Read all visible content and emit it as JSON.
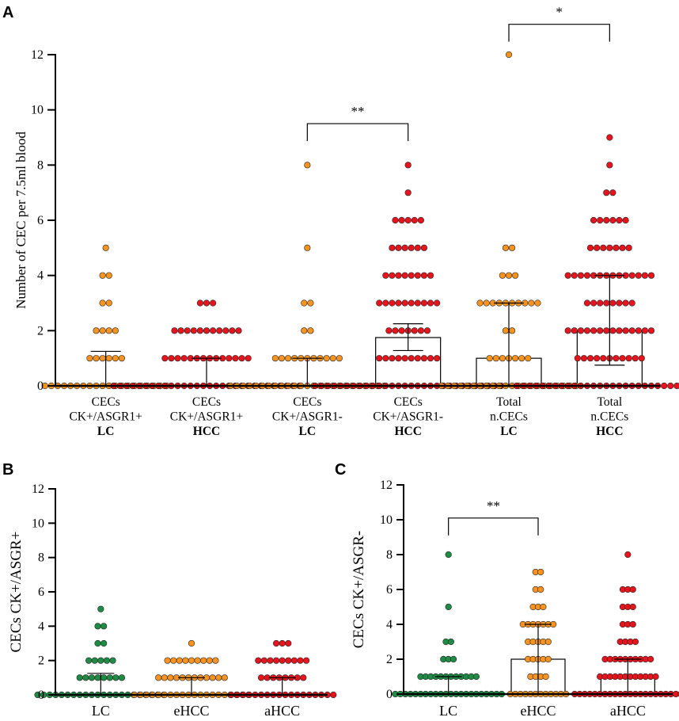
{
  "colors": {
    "LC": "#f7931e",
    "HCC": "#e8141d",
    "LC_green": "#1e8c45",
    "eHCC": "#f7931e",
    "aHCC": "#e8141d"
  },
  "chart_data": [
    {
      "panel": "A",
      "type": "scatter",
      "ylabel": "Number of CEC per 7.5ml blood",
      "ylim": [
        0,
        12
      ],
      "yticks": [
        0,
        2,
        4,
        6,
        8,
        10,
        12
      ],
      "categories": [
        {
          "lines": [
            "CECs",
            "CK+/ASGR1+",
            "LC"
          ],
          "color_key": "LC",
          "bar": null,
          "mean": 0.25,
          "err_low": 0,
          "err_high": 1.25,
          "points": [
            [
              5,
              1
            ],
            [
              4,
              2
            ],
            [
              3,
              2
            ],
            [
              2,
              4
            ],
            [
              1,
              6
            ],
            [
              0,
              20
            ]
          ]
        },
        {
          "lines": [
            "CECs",
            "CK+/ASGR1+",
            "HCC"
          ],
          "color_key": "HCC",
          "bar": null,
          "mean": 0.4,
          "err_low": 0,
          "err_high": 1.0,
          "points": [
            [
              3,
              3
            ],
            [
              2,
              11
            ],
            [
              1,
              14
            ],
            [
              0,
              30
            ]
          ]
        },
        {
          "lines": [
            "CECs",
            "CK+/ASGR1-",
            "LC"
          ],
          "color_key": "LC",
          "bar": null,
          "mean": 0.35,
          "err_low": 0,
          "err_high": 1.0,
          "points": [
            [
              8,
              1
            ],
            [
              5,
              1
            ],
            [
              3,
              2
            ],
            [
              2,
              2
            ],
            [
              1,
              11
            ],
            [
              0,
              25
            ]
          ]
        },
        {
          "lines": [
            "CECs",
            "CK+/ASGR1-",
            "HCC"
          ],
          "color_key": "HCC",
          "bar": 1.75,
          "mean": 1.75,
          "err_low": 1.28,
          "err_high": 2.25,
          "points": [
            [
              8,
              1
            ],
            [
              7,
              1
            ],
            [
              6,
              5
            ],
            [
              5,
              6
            ],
            [
              4,
              8
            ],
            [
              3,
              10
            ],
            [
              2,
              7
            ],
            [
              1,
              10
            ],
            [
              0,
              30
            ]
          ]
        },
        {
          "lines": [
            "Total",
            "n.CECs",
            "LC"
          ],
          "color_key": "LC",
          "bar": 1.0,
          "mean": 1.0,
          "err_low": 0,
          "err_high": 3.0,
          "points": [
            [
              12,
              1
            ],
            [
              5,
              2
            ],
            [
              4,
              3
            ],
            [
              3,
              10
            ],
            [
              2,
              2
            ],
            [
              1,
              7
            ],
            [
              0,
              22
            ]
          ]
        },
        {
          "lines": [
            "Total",
            "n.CECs",
            "HCC"
          ],
          "color_key": "HCC",
          "bar": 2.0,
          "mean": 2.0,
          "err_low": 0.75,
          "err_high": 4.0,
          "points": [
            [
              9,
              1
            ],
            [
              8,
              1
            ],
            [
              7,
              2
            ],
            [
              6,
              6
            ],
            [
              5,
              7
            ],
            [
              4,
              14
            ],
            [
              3,
              8
            ],
            [
              2,
              14
            ],
            [
              1,
              11
            ],
            [
              0,
              30
            ]
          ]
        }
      ],
      "significance": [
        {
          "from": 2,
          "to": 3,
          "label": "**",
          "y": 9.5
        },
        {
          "from": 4,
          "to": 5,
          "label": "*",
          "y": 13.1
        }
      ]
    },
    {
      "panel": "B",
      "type": "scatter",
      "ylabel": "CECs CK+/ASGR+",
      "ylim": [
        0,
        12
      ],
      "yticks": [
        0,
        2,
        4,
        6,
        8,
        10,
        12
      ],
      "categories": [
        {
          "lines": [
            "LC"
          ],
          "color_key": "LC_green",
          "bar": null,
          "mean": 0.4,
          "err_low": 0,
          "err_high": 1.25,
          "points": [
            [
              5,
              1
            ],
            [
              4,
              2
            ],
            [
              3,
              2
            ],
            [
              2,
              5
            ],
            [
              1,
              8
            ],
            [
              0,
              22
            ]
          ]
        },
        {
          "lines": [
            "eHCC"
          ],
          "color_key": "eHCC",
          "bar": null,
          "mean": 0.4,
          "err_low": 0,
          "err_high": 1.0,
          "points": [
            [
              3,
              1
            ],
            [
              2,
              9
            ],
            [
              1,
              12
            ],
            [
              0,
              20
            ]
          ]
        },
        {
          "lines": [
            "aHCC"
          ],
          "color_key": "aHCC",
          "bar": null,
          "mean": 0.4,
          "err_low": 0,
          "err_high": 1.0,
          "points": [
            [
              3,
              3
            ],
            [
              2,
              9
            ],
            [
              1,
              8
            ],
            [
              0,
              18
            ]
          ]
        }
      ],
      "significance": []
    },
    {
      "panel": "C",
      "type": "bar",
      "ylabel": "CECs CK+/ASGR-",
      "ylim": [
        0,
        12
      ],
      "yticks": [
        0,
        2,
        4,
        6,
        8,
        10,
        12
      ],
      "categories": [
        {
          "lines": [
            "LC"
          ],
          "color_key": "LC_green",
          "bar": null,
          "mean": 0.35,
          "err_low": 0,
          "err_high": 1.0,
          "points": [
            [
              8,
              1
            ],
            [
              5,
              1
            ],
            [
              3,
              2
            ],
            [
              2,
              3
            ],
            [
              1,
              12
            ],
            [
              0,
              22
            ]
          ]
        },
        {
          "lines": [
            "eHCC"
          ],
          "color_key": "eHCC",
          "bar": 2.0,
          "mean": 2.0,
          "err_low": 0,
          "err_high": 4.0,
          "points": [
            [
              7,
              2
            ],
            [
              6,
              2
            ],
            [
              5,
              3
            ],
            [
              4,
              7
            ],
            [
              3,
              5
            ],
            [
              2,
              5
            ],
            [
              1,
              4
            ],
            [
              0,
              12
            ]
          ]
        },
        {
          "lines": [
            "aHCC"
          ],
          "color_key": "aHCC",
          "bar": 1.0,
          "mean": 1.0,
          "err_low": 0,
          "err_high": 2.0,
          "points": [
            [
              8,
              1
            ],
            [
              6,
              3
            ],
            [
              5,
              3
            ],
            [
              4,
              3
            ],
            [
              3,
              4
            ],
            [
              2,
              10
            ],
            [
              1,
              12
            ],
            [
              0,
              22
            ]
          ]
        }
      ],
      "significance": [
        {
          "from": 0,
          "to": 1,
          "label": "**",
          "y": 10.1
        }
      ]
    }
  ]
}
